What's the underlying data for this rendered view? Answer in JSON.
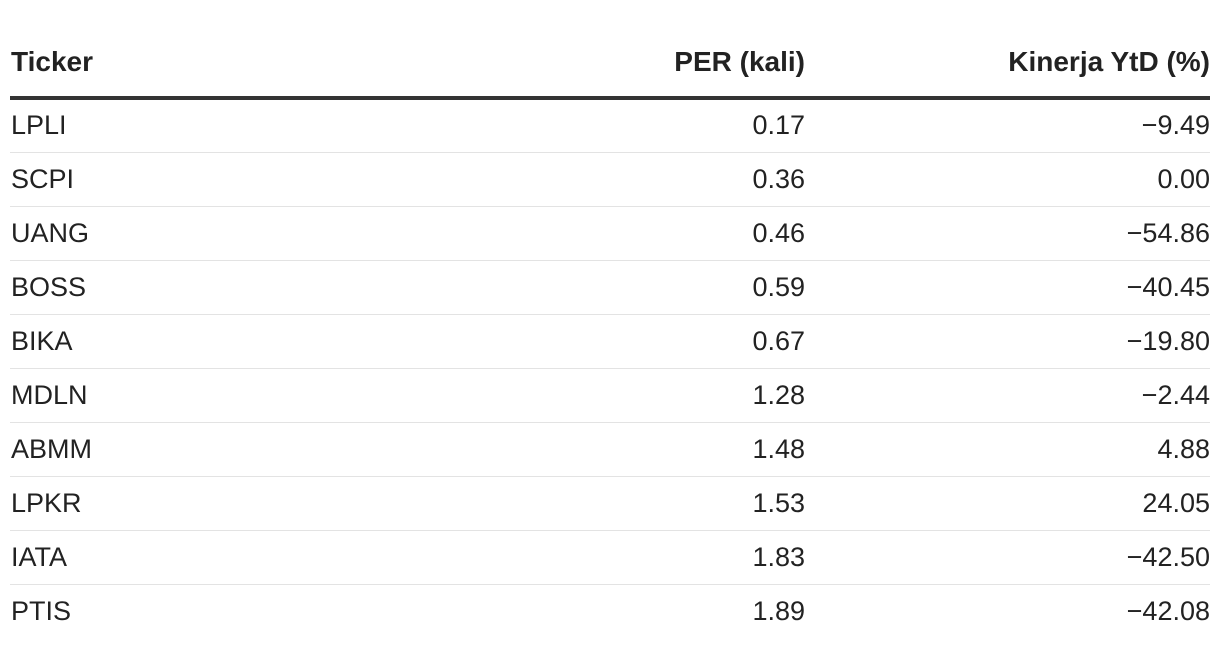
{
  "chart_data": {
    "type": "table",
    "columns": [
      "Ticker",
      "PER (kali)",
      "Kinerja YtD (%)"
    ],
    "rows": [
      [
        "LPLI",
        "0.17",
        "−9.49"
      ],
      [
        "SCPI",
        "0.36",
        "0.00"
      ],
      [
        "UANG",
        "0.46",
        "−54.86"
      ],
      [
        "BOSS",
        "0.59",
        "−40.45"
      ],
      [
        "BIKA",
        "0.67",
        "−19.80"
      ],
      [
        "MDLN",
        "1.28",
        "−2.44"
      ],
      [
        "ABMM",
        "1.48",
        "4.88"
      ],
      [
        "LPKR",
        "1.53",
        "24.05"
      ],
      [
        "IATA",
        "1.83",
        "−42.50"
      ],
      [
        "PTIS",
        "1.89",
        "−42.08"
      ]
    ]
  },
  "colors": {
    "text": "#222222",
    "header_rule": "#333333",
    "row_rule": "#e3e3e3",
    "background": "#ffffff"
  }
}
